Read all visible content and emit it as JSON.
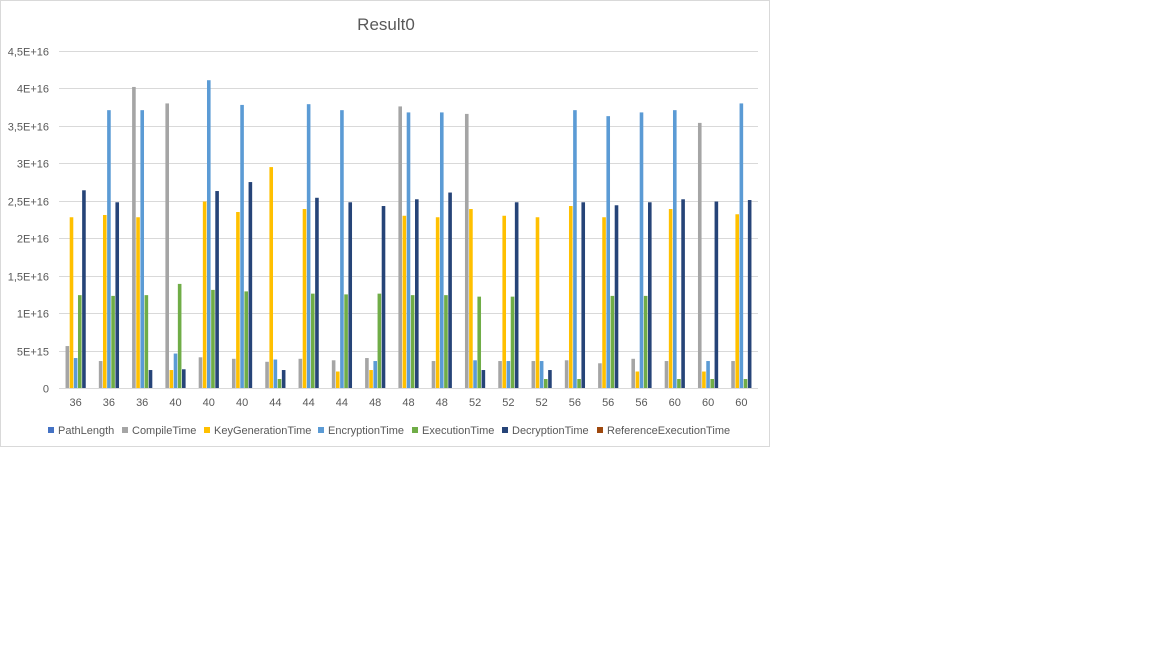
{
  "chart_data": {
    "type": "bar",
    "title": "Result0",
    "xlabel": "",
    "ylabel": "",
    "ylim": [
      0,
      4.5e+16
    ],
    "yticks": [
      0,
      5000000000000000.0,
      1e+16,
      1.5e+16,
      2e+16,
      2.5e+16,
      3e+16,
      3.5e+16,
      4e+16,
      4.5e+16
    ],
    "ytick_labels": [
      "0",
      "5E+15",
      "1E+16",
      "1,5E+16",
      "2E+16",
      "2,5E+16",
      "3E+16",
      "3,5E+16",
      "4E+16",
      "4,5E+16"
    ],
    "grid": true,
    "legend_position": "bottom",
    "categories": [
      "36",
      "36",
      "36",
      "40",
      "40",
      "40",
      "44",
      "44",
      "44",
      "48",
      "48",
      "48",
      "52",
      "52",
      "52",
      "56",
      "56",
      "56",
      "60",
      "60",
      "60"
    ],
    "series": [
      {
        "name": "PathLength",
        "color": "#4472c4",
        "values": [
          0,
          0,
          0,
          0,
          0,
          0,
          0,
          0,
          0,
          0,
          0,
          0,
          0,
          0,
          0,
          0,
          0,
          0,
          0,
          0,
          0
        ]
      },
      {
        "name": "CompileTime",
        "color": "#a5a5a5",
        "values": [
          5600000000000000.0,
          3600000000000000.0,
          4.02e+16,
          3.8e+16,
          4100000000000000.0,
          3900000000000000.0,
          3500000000000000.0,
          3900000000000000.0,
          3700000000000000.0,
          4000000000000000.0,
          3.76e+16,
          3600000000000000.0,
          3.66e+16,
          3600000000000000.0,
          3600000000000000.0,
          3700000000000000.0,
          3300000000000000.0,
          3900000000000000.0,
          3600000000000000.0,
          3.54e+16,
          3600000000000000.0
        ]
      },
      {
        "name": "KeyGenerationTime",
        "color": "#ffc000",
        "values": [
          2.28e+16,
          2.31e+16,
          2.28e+16,
          2400000000000000.0,
          2.49e+16,
          2.35e+16,
          2.95e+16,
          2.39e+16,
          2200000000000000.0,
          2400000000000000.0,
          2.3e+16,
          2.28e+16,
          2.39e+16,
          2.3e+16,
          2.28e+16,
          2.43e+16,
          2.28e+16,
          2200000000000000.0,
          2.39e+16,
          2200000000000000.0,
          2.32e+16
        ]
      },
      {
        "name": "EncryptionTime",
        "color": "#5b9bd5",
        "values": [
          4000000000000000.0,
          3.71e+16,
          3.71e+16,
          4600000000000000.0,
          4.11e+16,
          3.78e+16,
          3800000000000000.0,
          3.79e+16,
          3.71e+16,
          3600000000000000.0,
          3.68e+16,
          3.68e+16,
          3700000000000000.0,
          3600000000000000.0,
          3600000000000000.0,
          3.71e+16,
          3.63e+16,
          3.68e+16,
          3.71e+16,
          3600000000000000.0,
          3.8e+16
        ]
      },
      {
        "name": "ExecutionTime",
        "color": "#70ad47",
        "values": [
          1.24e+16,
          1.23e+16,
          1.24e+16,
          1.39e+16,
          1.31e+16,
          1.29e+16,
          1200000000000000.0,
          1.26e+16,
          1.25e+16,
          1.26e+16,
          1.24e+16,
          1.24e+16,
          1.22e+16,
          1.22e+16,
          1200000000000000.0,
          1200000000000000.0,
          1.23e+16,
          1.23e+16,
          1200000000000000.0,
          1200000000000000.0,
          1200000000000000.0
        ]
      },
      {
        "name": "DecryptionTime",
        "color": "#264478",
        "values": [
          2.64e+16,
          2.48e+16,
          2400000000000000.0,
          2500000000000000.0,
          2.63e+16,
          2.75e+16,
          2400000000000000.0,
          2.54e+16,
          2.48e+16,
          2.43e+16,
          2.52e+16,
          2.61e+16,
          2400000000000000.0,
          2.48e+16,
          2400000000000000.0,
          2.48e+16,
          2.44e+16,
          2.48e+16,
          2.52e+16,
          2.49e+16,
          2.51e+16
        ]
      },
      {
        "name": "ReferenceExecutionTime",
        "color": "#9e480e",
        "values": [
          0,
          0,
          0,
          0,
          0,
          0,
          0,
          0,
          0,
          0,
          0,
          0,
          0,
          0,
          0,
          0,
          0,
          0,
          0,
          0,
          0
        ]
      }
    ]
  }
}
